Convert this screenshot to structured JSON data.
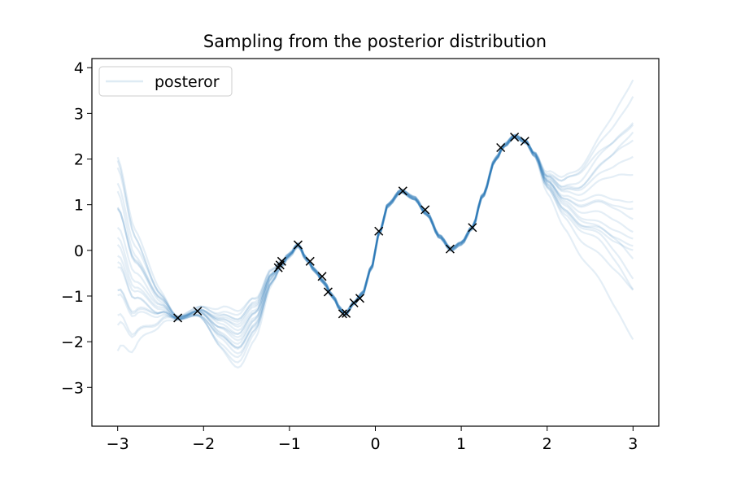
{
  "chart_data": {
    "type": "line",
    "title": "Sampling from the posterior distribution",
    "xlabel": "",
    "ylabel": "",
    "xlim": [
      -3.3,
      3.3
    ],
    "ylim": [
      -3.85,
      4.2
    ],
    "x_ticks": [
      -3,
      -2,
      -1,
      0,
      1,
      2,
      3
    ],
    "y_ticks": [
      -3,
      -2,
      -1,
      0,
      1,
      2,
      3,
      4
    ],
    "x_tick_labels": [
      "−3",
      "−2",
      "−1",
      "0",
      "1",
      "2",
      "3"
    ],
    "y_tick_labels": [
      "−3",
      "−2",
      "−1",
      "0",
      "1",
      "2",
      "3",
      "4"
    ],
    "grid": false,
    "legend": {
      "position": "top-left",
      "entries": [
        "posteror"
      ]
    },
    "sample_color": "#1f77b4",
    "sample_alpha": 0.12,
    "marker_color": "#000000",
    "posterior_mean": {
      "x": [
        -3.0,
        -2.8,
        -2.5,
        -2.3,
        -2.05,
        -1.8,
        -1.6,
        -1.4,
        -1.2,
        -1.1,
        -1.0,
        -0.9,
        -0.8,
        -0.7,
        -0.6,
        -0.5,
        -0.4,
        -0.35,
        -0.25,
        -0.15,
        -0.05,
        0.05,
        0.15,
        0.3,
        0.45,
        0.6,
        0.75,
        0.88,
        1.0,
        1.13,
        1.25,
        1.4,
        1.5,
        1.62,
        1.75,
        1.85,
        2.0,
        2.2,
        2.4,
        2.6,
        2.8,
        3.0
      ],
      "y": [
        0.4,
        -0.6,
        -1.2,
        -1.48,
        -1.33,
        -1.65,
        -1.85,
        -1.4,
        -0.55,
        -0.3,
        -0.1,
        0.12,
        -0.2,
        -0.45,
        -0.7,
        -1.0,
        -1.3,
        -1.4,
        -1.15,
        -0.95,
        -0.4,
        0.4,
        1.0,
        1.3,
        1.15,
        0.8,
        0.3,
        0.02,
        0.15,
        0.5,
        1.2,
        2.0,
        2.3,
        2.5,
        2.38,
        2.1,
        1.5,
        1.1,
        0.9,
        1.0,
        0.9,
        0.8
      ]
    },
    "sample_offsets": [
      {
        "left": 1.1,
        "right": 2.9
      },
      {
        "left": -1.2,
        "right": 1.4
      },
      {
        "left": 0.6,
        "right": -1.3
      },
      {
        "left": -2.5,
        "right": 0.3
      },
      {
        "left": 0.2,
        "right": -2.9
      },
      {
        "left": -0.6,
        "right": 2.1
      },
      {
        "left": 1.6,
        "right": -0.6
      },
      {
        "left": -1.8,
        "right": -1.9
      },
      {
        "left": 0.9,
        "right": 0.8
      },
      {
        "left": -0.3,
        "right": -0.2
      },
      {
        "left": -1.5,
        "right": 1.8
      },
      {
        "left": 0.4,
        "right": -1.6
      },
      {
        "left": -0.9,
        "right": 0.5
      },
      {
        "left": 1.3,
        "right": -0.9
      },
      {
        "left": -2.1,
        "right": 1.1
      },
      {
        "left": 0.0,
        "right": -0.4
      },
      {
        "left": 0.7,
        "right": 1.6
      },
      {
        "left": -1.1,
        "right": -1.1
      },
      {
        "left": 1.8,
        "right": 0.1
      },
      {
        "left": -0.4,
        "right": 2.6
      }
    ],
    "observations": {
      "x": [
        -2.3,
        -2.07,
        -1.13,
        -1.11,
        -1.09,
        -0.9,
        -0.76,
        -0.62,
        -0.55,
        -0.38,
        -0.34,
        -0.25,
        -0.18,
        0.04,
        0.32,
        0.58,
        0.87,
        1.13,
        1.46,
        1.62,
        1.74
      ],
      "y": [
        -1.48,
        -1.33,
        -0.38,
        -0.32,
        -0.24,
        0.12,
        -0.24,
        -0.57,
        -0.91,
        -1.39,
        -1.38,
        -1.15,
        -1.05,
        0.42,
        1.3,
        0.89,
        0.03,
        0.5,
        2.25,
        2.48,
        2.39
      ]
    }
  }
}
